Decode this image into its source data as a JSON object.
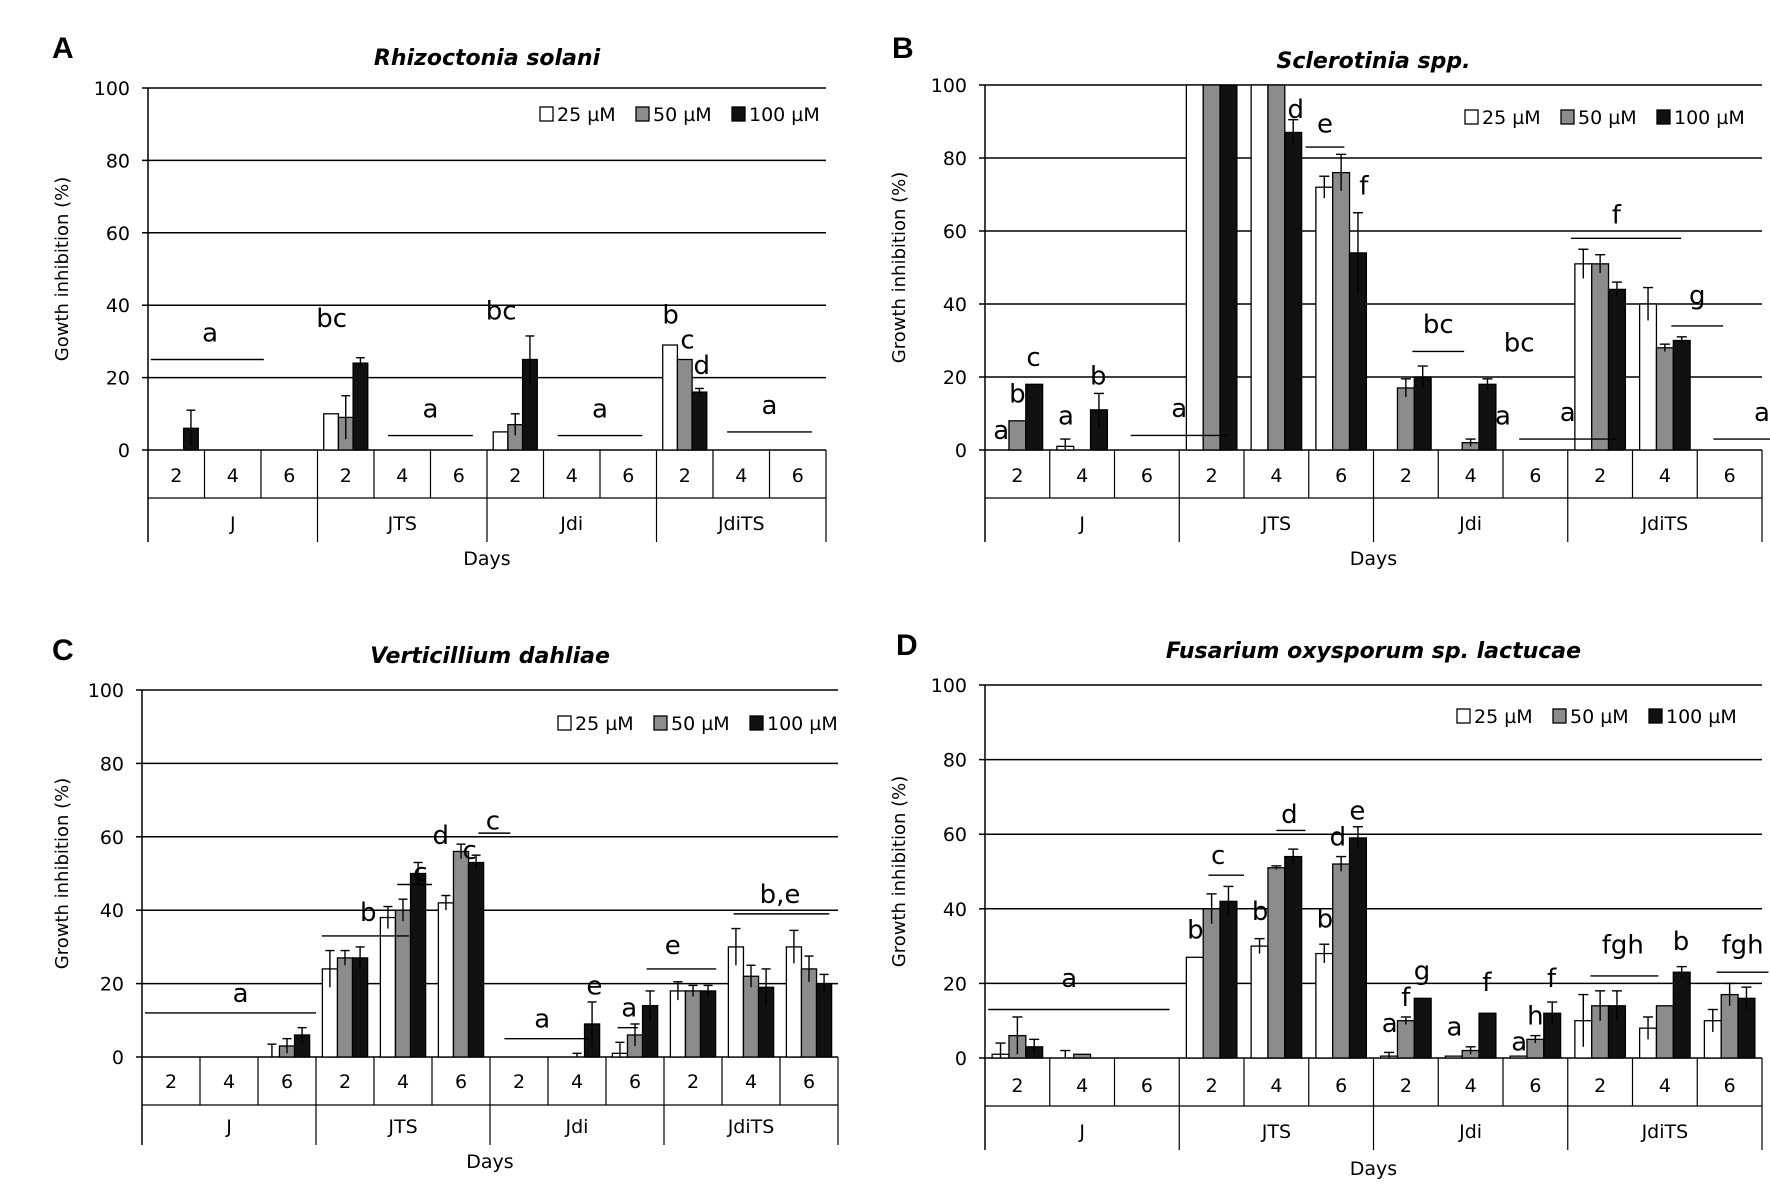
{
  "colors": {
    "c25": "#ffffff",
    "c50": "#8c8c8c",
    "c100": "#111111"
  },
  "chart_data": [
    {
      "type": "bar",
      "letter": "A",
      "title": "Rhizoctonia solani",
      "ylabel": "Gowth inhibition (%)",
      "xlabel": "Days",
      "ylim": [
        0,
        100
      ],
      "yticks": [
        "0",
        "20",
        "40",
        "60",
        "80",
        "100"
      ],
      "groups": [
        "J",
        "JTS",
        "Jdi",
        "JdiTS"
      ],
      "days": [
        "2",
        "4",
        "6"
      ],
      "legend": [
        "25 µM",
        "50 µM",
        "100 µM"
      ],
      "series": [
        {
          "name": "25 µM",
          "values": [
            0,
            0,
            0,
            10,
            0,
            0,
            5,
            0,
            0,
            29,
            0,
            0
          ],
          "err": [
            0,
            0,
            0,
            0,
            0,
            0,
            0,
            0,
            0,
            0,
            0,
            0
          ]
        },
        {
          "name": "50 µM",
          "values": [
            0,
            0,
            0,
            9,
            0,
            0,
            7,
            0,
            0,
            25,
            0,
            0
          ],
          "err": [
            0,
            0,
            0,
            6,
            0,
            0,
            3,
            0,
            0,
            0,
            0,
            0
          ]
        },
        {
          "name": "100 µM",
          "values": [
            6,
            0,
            0,
            24,
            0,
            0,
            25,
            0,
            0,
            16,
            0,
            0
          ],
          "err": [
            5,
            0,
            0,
            1.5,
            0,
            0,
            6.5,
            0,
            0,
            1,
            0,
            0
          ]
        }
      ],
      "annotations": [
        {
          "text": "a",
          "x": 0.6,
          "y": 30,
          "line": [
            -0.45,
            1.55,
            25
          ]
        },
        {
          "text": "bc",
          "x": 2.75,
          "y": 34
        },
        {
          "text": "a",
          "x": 4.5,
          "y": 9,
          "line": [
            3.75,
            5.25,
            4
          ]
        },
        {
          "text": "bc",
          "x": 5.75,
          "y": 36
        },
        {
          "text": "a",
          "x": 7.5,
          "y": 9,
          "line": [
            6.75,
            8.25,
            4
          ]
        },
        {
          "text": "b",
          "x": 8.75,
          "y": 35
        },
        {
          "text": "c",
          "x": 9.05,
          "y": 28
        },
        {
          "text": "d",
          "x": 9.3,
          "y": 21
        },
        {
          "text": "a",
          "x": 10.5,
          "y": 10,
          "line": [
            9.75,
            11.25,
            5
          ]
        }
      ]
    },
    {
      "type": "bar",
      "letter": "B",
      "title": "Sclerotinia spp.",
      "ylabel": "Growth inhibition (%)",
      "xlabel": "Days",
      "ylim": [
        0,
        100
      ],
      "yticks": [
        "0",
        "20",
        "40",
        "60",
        "80",
        "100"
      ],
      "groups": [
        "J",
        "JTS",
        "Jdi",
        "JdiTS"
      ],
      "days": [
        "2",
        "4",
        "6"
      ],
      "legend": [
        "25 µM",
        "50 µM",
        "100 µM"
      ],
      "series": [
        {
          "name": "25 µM",
          "values": [
            0,
            1,
            0,
            100,
            100,
            72,
            0,
            0,
            0,
            51,
            40,
            0
          ],
          "err": [
            0,
            2,
            0,
            0,
            0,
            3,
            0,
            0,
            0,
            4,
            4.5,
            0
          ]
        },
        {
          "name": "50 µM",
          "values": [
            8,
            0,
            0,
            100,
            100,
            76,
            17,
            2,
            0,
            51,
            28,
            0
          ],
          "err": [
            0,
            0,
            0,
            0,
            0,
            5,
            2.5,
            1,
            0,
            2.5,
            1,
            0
          ]
        },
        {
          "name": "100 µM",
          "values": [
            18,
            11,
            0,
            100,
            87,
            54,
            20,
            18,
            0,
            44,
            30,
            0
          ],
          "err": [
            0,
            4.5,
            0,
            0,
            3.5,
            11,
            3,
            1.5,
            0,
            2,
            1,
            0
          ]
        }
      ],
      "annotations": [
        {
          "text": "a",
          "x": -0.25,
          "y": 3
        },
        {
          "text": "b",
          "x": 0,
          "y": 13
        },
        {
          "text": "c",
          "x": 0.25,
          "y": 23
        },
        {
          "text": "a",
          "x": 0.75,
          "y": 7
        },
        {
          "text": "b",
          "x": 1.25,
          "y": 18
        },
        {
          "text": "a",
          "x": 2.5,
          "y": 9,
          "line": [
            1.75,
            3.25,
            4
          ]
        },
        {
          "text": "d",
          "x": 4.3,
          "y": 91
        },
        {
          "text": "e",
          "x": 4.75,
          "y": 87,
          "line": [
            4.45,
            5.05,
            83
          ]
        },
        {
          "text": "f",
          "x": 5.35,
          "y": 70
        },
        {
          "text": "bc",
          "x": 6.5,
          "y": 32,
          "line": [
            6.1,
            6.9,
            27
          ]
        },
        {
          "text": "bc",
          "x": 7.75,
          "y": 27
        },
        {
          "text": "a",
          "x": 7.5,
          "y": 7
        },
        {
          "text": "a",
          "x": 8.5,
          "y": 8,
          "line": [
            7.75,
            9.25,
            3
          ]
        },
        {
          "text": "f",
          "x": 9.25,
          "y": 62,
          "line": [
            8.55,
            10.25,
            58
          ]
        },
        {
          "text": "g",
          "x": 10.5,
          "y": 40,
          "line": [
            10.1,
            10.9,
            34
          ]
        },
        {
          "text": "a",
          "x": 11.5,
          "y": 8,
          "line": [
            10.75,
            12.25,
            3
          ]
        }
      ]
    },
    {
      "type": "bar",
      "letter": "C",
      "title": "Verticillium dahliae",
      "ylabel": "Growth inhibition (%)",
      "xlabel": "Days",
      "ylim": [
        0,
        100
      ],
      "yticks": [
        "0",
        "20",
        "40",
        "60",
        "80",
        "100"
      ],
      "groups": [
        "J",
        "JTS",
        "Jdi",
        "JdiTS"
      ],
      "days": [
        "2",
        "4",
        "6"
      ],
      "legend": [
        "25 µM",
        "50 µM",
        "100 µM"
      ],
      "series": [
        {
          "name": "25 µM",
          "values": [
            0,
            0,
            0,
            24,
            38,
            42,
            0,
            0,
            1,
            18,
            30,
            30
          ],
          "err": [
            0,
            0,
            3.5,
            5,
            3,
            2,
            0,
            0,
            3,
            2.5,
            5,
            4.5
          ]
        },
        {
          "name": "50 µM",
          "values": [
            0,
            0,
            3,
            27,
            40,
            56,
            0,
            0,
            6,
            18,
            22,
            24
          ],
          "err": [
            0,
            0,
            2,
            2,
            3,
            2,
            0,
            1,
            3,
            1.5,
            3,
            3.5
          ]
        },
        {
          "name": "100 µM",
          "values": [
            0,
            0,
            6,
            27,
            50,
            53,
            0,
            9,
            14,
            18,
            19,
            20
          ],
          "err": [
            0,
            0,
            2,
            3,
            3,
            2,
            0,
            6,
            4,
            1.5,
            5,
            2.5
          ]
        }
      ],
      "annotations": [
        {
          "text": "a",
          "x": 1.2,
          "y": 15,
          "line": [
            -0.45,
            2.5,
            12
          ]
        },
        {
          "text": "b",
          "x": 3.4,
          "y": 37,
          "line": [
            2.6,
            4.1,
            33
          ]
        },
        {
          "text": "c",
          "x": 4.3,
          "y": 48,
          "line": [
            3.9,
            4.5,
            47
          ]
        },
        {
          "text": "d",
          "x": 4.65,
          "y": 58
        },
        {
          "text": "c",
          "x": 5.15,
          "y": 54
        },
        {
          "text": "c",
          "x": 5.55,
          "y": 62,
          "line": [
            5.3,
            5.85,
            61
          ]
        },
        {
          "text": "a",
          "x": 6.4,
          "y": 8,
          "line": [
            5.75,
            7.2,
            5
          ]
        },
        {
          "text": "e",
          "x": 7.3,
          "y": 17
        },
        {
          "text": "a",
          "x": 7.9,
          "y": 11,
          "line": [
            7.7,
            8.05,
            8
          ]
        },
        {
          "text": "e",
          "x": 8.65,
          "y": 28,
          "line": [
            8.2,
            9.4,
            24
          ]
        },
        {
          "text": "b,e",
          "x": 10.5,
          "y": 42,
          "line": [
            9.7,
            11.35,
            39
          ]
        }
      ]
    },
    {
      "type": "bar",
      "letter": "D",
      "title": "Fusarium oxysporum sp. lactucae",
      "ylabel": "Growth inhibition (%)",
      "xlabel": "Days",
      "ylim": [
        0,
        100
      ],
      "yticks": [
        "0",
        "20",
        "40",
        "60",
        "80",
        "100"
      ],
      "groups": [
        "J",
        "JTS",
        "Jdi",
        "JdiTS"
      ],
      "days": [
        "2",
        "4",
        "6"
      ],
      "legend": [
        "25 µM",
        "50 µM",
        "100 µM"
      ],
      "series": [
        {
          "name": "25 µM",
          "values": [
            1,
            0,
            0,
            27,
            30,
            28,
            0.5,
            0.5,
            0.5,
            10,
            8,
            10
          ],
          "err": [
            3,
            2,
            0,
            0,
            2,
            2.5,
            1,
            0,
            0,
            7,
            3,
            3
          ]
        },
        {
          "name": "50 µM",
          "values": [
            6,
            1,
            0,
            40,
            51,
            52,
            10,
            2,
            5,
            14,
            14,
            17
          ],
          "err": [
            5,
            0,
            0,
            4,
            0.5,
            2,
            1,
            1,
            1,
            4,
            0,
            3
          ]
        },
        {
          "name": "100 µM",
          "values": [
            3,
            0,
            0,
            42,
            54,
            59,
            16,
            12,
            12,
            14,
            23,
            16
          ],
          "err": [
            2,
            0,
            0,
            4,
            2,
            3,
            0,
            0,
            3,
            4,
            1.5,
            3
          ]
        }
      ],
      "annotations": [
        {
          "text": "a",
          "x": 0.8,
          "y": 19,
          "line": [
            -0.45,
            2.35,
            13
          ]
        },
        {
          "text": "b",
          "x": 2.75,
          "y": 32
        },
        {
          "text": "c",
          "x": 3.1,
          "y": 52,
          "line": [
            2.95,
            3.5,
            49
          ]
        },
        {
          "text": "b",
          "x": 3.75,
          "y": 37
        },
        {
          "text": "d",
          "x": 4.2,
          "y": 63,
          "line": [
            4.0,
            4.45,
            61
          ]
        },
        {
          "text": "b",
          "x": 4.75,
          "y": 35
        },
        {
          "text": "d",
          "x": 4.95,
          "y": 57
        },
        {
          "text": "e",
          "x": 5.25,
          "y": 64
        },
        {
          "text": "a",
          "x": 5.75,
          "y": 7
        },
        {
          "text": "f",
          "x": 6.0,
          "y": 14
        },
        {
          "text": "g",
          "x": 6.25,
          "y": 21
        },
        {
          "text": "a",
          "x": 6.75,
          "y": 6
        },
        {
          "text": "f",
          "x": 7.25,
          "y": 18
        },
        {
          "text": "a",
          "x": 7.75,
          "y": 2
        },
        {
          "text": "h",
          "x": 8.0,
          "y": 9
        },
        {
          "text": "f",
          "x": 8.25,
          "y": 19
        },
        {
          "text": "fgh",
          "x": 9.35,
          "y": 28,
          "line": [
            8.85,
            9.9,
            22
          ]
        },
        {
          "text": "b",
          "x": 10.25,
          "y": 29
        },
        {
          "text": "fgh",
          "x": 11.2,
          "y": 28,
          "line": [
            10.8,
            11.6,
            23
          ]
        }
      ]
    }
  ]
}
